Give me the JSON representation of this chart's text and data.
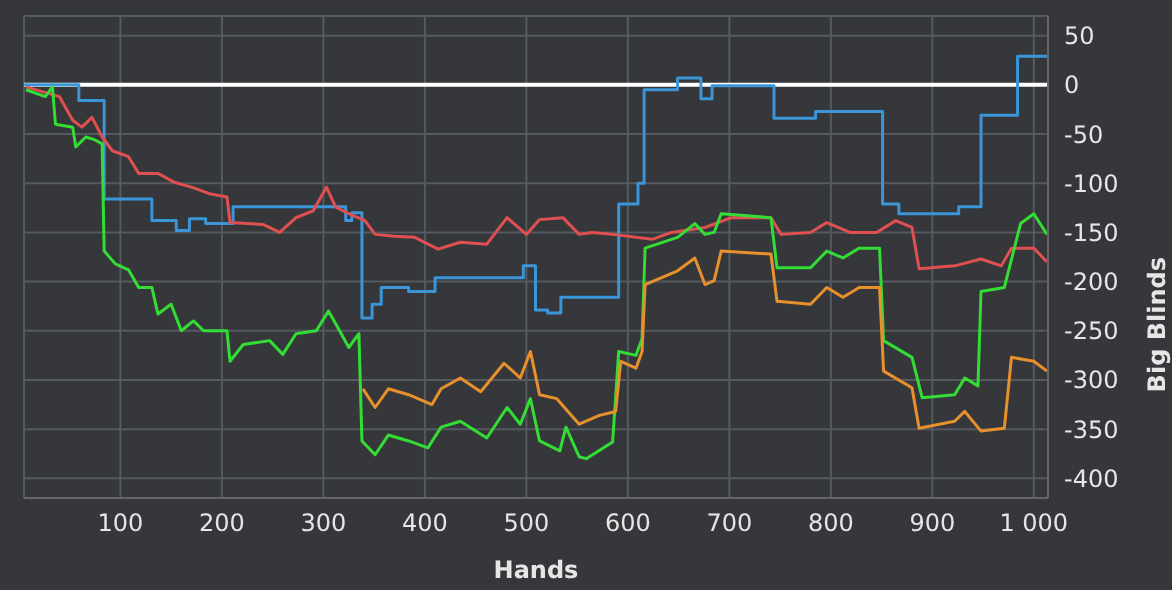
{
  "chart_data": {
    "type": "line",
    "xlabel": "Hands",
    "ylabel": "Big Blinds",
    "xlim": [
      5,
      1014
    ],
    "ylim": [
      -420,
      70
    ],
    "xticks": [
      100,
      200,
      300,
      400,
      500,
      600,
      700,
      800,
      900,
      {
        "value": 1000,
        "label": "1 000"
      }
    ],
    "yticks": [
      50,
      0,
      -50,
      -100,
      -150,
      -200,
      -250,
      -300,
      -350,
      -400
    ],
    "grid": true,
    "marker": "none",
    "line_style": "solid",
    "ref_lines": [
      {
        "axis": "y",
        "value": 0,
        "color": "#ffffff"
      }
    ],
    "series": [
      {
        "type": "step",
        "color": "#3a96d8",
        "x": [
          5,
          59,
          84,
          131,
          155,
          168,
          184,
          211,
          322,
          328,
          338,
          348,
          357,
          384,
          410,
          497,
          509,
          521,
          534,
          591,
          610,
          616,
          649,
          672,
          683,
          744,
          785,
          851,
          867,
          926,
          948,
          984,
          1013
        ],
        "values": [
          0,
          -16,
          -116,
          -138,
          -148,
          -136,
          -141,
          -124,
          -138,
          -130,
          -237,
          -223,
          -206,
          -210,
          -196,
          -184,
          -229,
          -232,
          -216,
          -121,
          -100,
          -5,
          7,
          -14,
          -1,
          -34,
          -27,
          -121,
          -131,
          -124,
          -31,
          29,
          29
        ]
      },
      {
        "color": "#e05050",
        "x": [
          7,
          40,
          53,
          62,
          72,
          82,
          92,
          108,
          118,
          137,
          153,
          170,
          189,
          205,
          208,
          241,
          257,
          273,
          290,
          303,
          312,
          325,
          341,
          351,
          370,
          390,
          413,
          435,
          461,
          481,
          500,
          513,
          536,
          552,
          565,
          585,
          624,
          643,
          676,
          702,
          741,
          751,
          780,
          796,
          819,
          845,
          864,
          880,
          887,
          922,
          948,
          968,
          978,
          1000,
          1013
        ],
        "values": [
          -2,
          -12,
          -36,
          -43,
          -33,
          -53,
          -67,
          -73,
          -90,
          -90,
          -99,
          -104,
          -111,
          -114,
          -140,
          -142,
          -150,
          -135,
          -128,
          -104,
          -124,
          -131,
          -138,
          -152,
          -154,
          -155,
          -167,
          -160,
          -162,
          -135,
          -152,
          -137,
          -135,
          -152,
          -150,
          -152,
          -157,
          -150,
          -145,
          -135,
          -135,
          -152,
          -150,
          -140,
          -150,
          -150,
          -138,
          -145,
          -187,
          -184,
          -177,
          -184,
          -166,
          -166,
          -180
        ]
      },
      {
        "color": "#33dd33",
        "x": [
          7,
          26,
          33,
          36,
          53,
          56,
          66,
          75,
          82,
          84,
          95,
          108,
          118,
          131,
          137,
          150,
          160,
          172,
          182,
          205,
          208,
          221,
          247,
          260,
          273,
          293,
          305,
          316,
          325,
          335,
          338,
          351,
          364,
          384,
          403,
          416,
          435,
          461,
          481,
          494,
          504,
          513,
          533,
          539,
          552,
          559,
          585,
          591,
          608,
          614,
          617,
          649,
          666,
          676,
          685,
          692,
          741,
          747,
          780,
          796,
          812,
          828,
          848,
          852,
          880,
          890,
          922,
          932,
          945,
          948,
          971,
          987,
          1000,
          1013
        ],
        "values": [
          -5,
          -12,
          -2,
          -40,
          -43,
          -63,
          -53,
          -56,
          -60,
          -169,
          -182,
          -188,
          -206,
          -206,
          -233,
          -223,
          -250,
          -240,
          -250,
          -250,
          -281,
          -264,
          -260,
          -274,
          -253,
          -250,
          -230,
          -250,
          -267,
          -253,
          -362,
          -376,
          -356,
          -362,
          -369,
          -348,
          -342,
          -359,
          -328,
          -345,
          -319,
          -362,
          -372,
          -348,
          -378,
          -380,
          -363,
          -271,
          -275,
          -258,
          -166,
          -155,
          -141,
          -152,
          -150,
          -131,
          -135,
          -186,
          -186,
          -169,
          -176,
          -166,
          -166,
          -260,
          -277,
          -318,
          -315,
          -298,
          -306,
          -210,
          -206,
          -141,
          -131,
          -152
        ]
      },
      {
        "color": "#e8902c",
        "x": [
          339,
          351,
          364,
          384,
          407,
          416,
          435,
          455,
          478,
          494,
          504,
          513,
          530,
          552,
          572,
          588,
          593,
          608,
          614,
          617,
          649,
          666,
          676,
          685,
          692,
          741,
          747,
          780,
          796,
          812,
          828,
          848,
          852,
          880,
          887,
          922,
          932,
          948,
          971,
          978,
          1000,
          1013
        ],
        "values": [
          -309,
          -328,
          -309,
          -315,
          -325,
          -309,
          -298,
          -312,
          -283,
          -298,
          -271,
          -315,
          -319,
          -345,
          -336,
          -332,
          -281,
          -288,
          -271,
          -203,
          -189,
          -176,
          -203,
          -199,
          -169,
          -172,
          -220,
          -223,
          -206,
          -216,
          -206,
          -206,
          -291,
          -308,
          -349,
          -342,
          -332,
          -352,
          -349,
          -277,
          -281,
          -291
        ]
      }
    ]
  }
}
